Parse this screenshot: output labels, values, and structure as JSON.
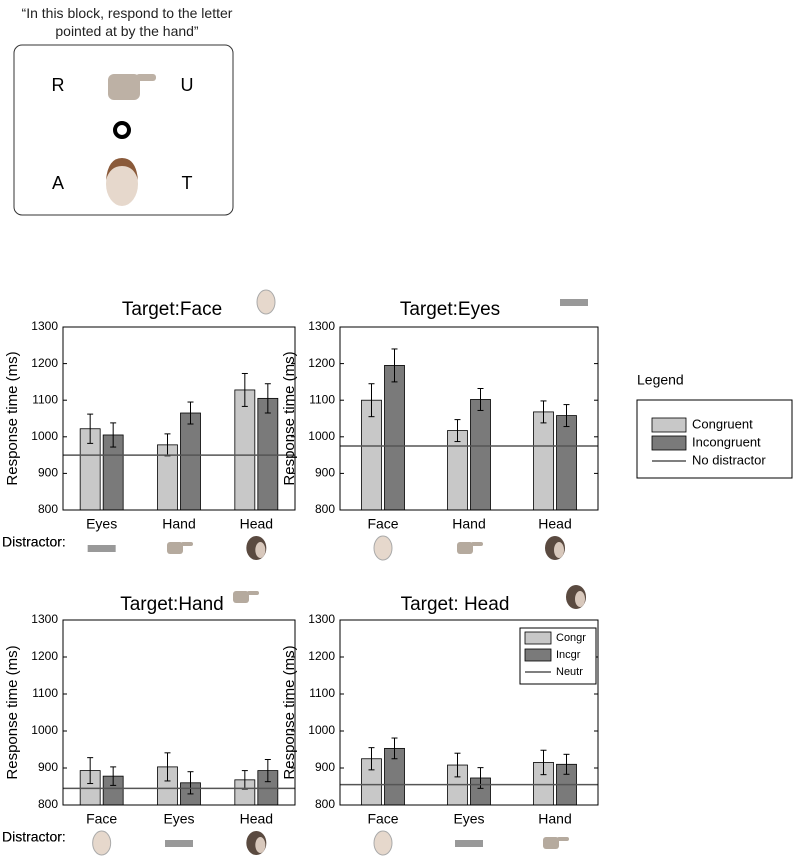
{
  "stimulus": {
    "instruction": "“In this block, respond to the letter pointed at by the hand”",
    "letters": [
      "R",
      "U",
      "A",
      "T"
    ]
  },
  "legend": {
    "title": "Legend",
    "entries": [
      {
        "label": "Congruent",
        "color": "#c8c8c8"
      },
      {
        "label": "Incongruent",
        "color": "#7a7a7a"
      },
      {
        "label": "No distractor",
        "color": "#555555"
      }
    ]
  },
  "chart_data": [
    {
      "type": "bar",
      "title": "Target:Face",
      "ylabel": "Response time (ms)",
      "xlabel": "Distractor:",
      "categories": [
        "Eyes",
        "Hand",
        "Head"
      ],
      "series": [
        {
          "color": "#c8c8c8",
          "values": [
            1022,
            978,
            1128
          ],
          "errors": [
            40,
            30,
            45
          ]
        },
        {
          "color": "#7a7a7a",
          "values": [
            1005,
            1065,
            1105
          ],
          "errors": [
            33,
            30,
            40
          ]
        }
      ],
      "reference": {
        "value": 950,
        "color": "#555555"
      },
      "ylim": [
        800,
        1300
      ],
      "yticks": [
        800,
        900,
        1000,
        1100,
        1200,
        1300
      ]
    },
    {
      "type": "bar",
      "title": "Target:Eyes",
      "ylabel": "Response time (ms)",
      "xlabel": "Distractor:",
      "categories": [
        "Face",
        "Hand",
        "Head"
      ],
      "series": [
        {
          "color": "#c8c8c8",
          "values": [
            1100,
            1017,
            1068
          ],
          "errors": [
            45,
            30,
            30
          ]
        },
        {
          "color": "#7a7a7a",
          "values": [
            1195,
            1102,
            1058
          ],
          "errors": [
            45,
            30,
            30
          ]
        }
      ],
      "reference": {
        "value": 975,
        "color": "#555555"
      },
      "ylim": [
        800,
        1300
      ],
      "yticks": [
        800,
        900,
        1000,
        1100,
        1200,
        1300
      ]
    },
    {
      "type": "bar",
      "title": "Target:Hand",
      "ylabel": "Response time (ms)",
      "xlabel": "Distractor:",
      "categories": [
        "Face",
        "Eyes",
        "Head"
      ],
      "series": [
        {
          "color": "#c8c8c8",
          "values": [
            893,
            903,
            868
          ],
          "errors": [
            35,
            38,
            25
          ]
        },
        {
          "color": "#7a7a7a",
          "values": [
            878,
            860,
            893
          ],
          "errors": [
            25,
            30,
            30
          ]
        }
      ],
      "reference": {
        "value": 845,
        "color": "#555555"
      },
      "ylim": [
        800,
        1300
      ],
      "yticks": [
        800,
        900,
        1000,
        1100,
        1200,
        1300
      ]
    },
    {
      "type": "bar",
      "title": "Target: Head",
      "ylabel": "Response time (ms)",
      "xlabel": "Distractor:",
      "categories": [
        "Face",
        "Eyes",
        "Hand"
      ],
      "series": [
        {
          "name": "Congr",
          "color": "#c8c8c8",
          "values": [
            925,
            908,
            915
          ],
          "errors": [
            30,
            32,
            33
          ]
        },
        {
          "name": "Incgr",
          "color": "#7a7a7a",
          "values": [
            953,
            873,
            910
          ],
          "errors": [
            28,
            28,
            27
          ]
        }
      ],
      "reference": {
        "name": "Neutr",
        "value": 855,
        "color": "#555555"
      },
      "ylim": [
        800,
        1300
      ],
      "yticks": [
        800,
        900,
        1000,
        1100,
        1200,
        1300
      ]
    }
  ]
}
